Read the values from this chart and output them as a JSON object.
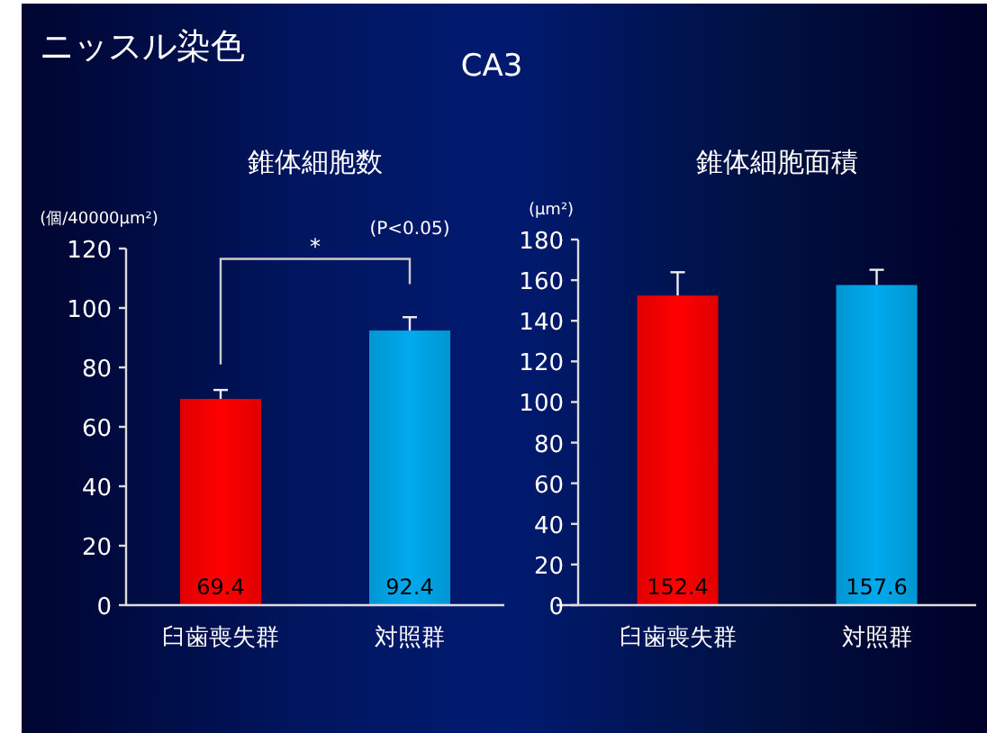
{
  "chart_data": [
    {
      "type": "bar",
      "title": "錐体細胞数",
      "ylabel": "(個/40000μm²)",
      "categories": [
        "臼歯喪失群",
        "対照群"
      ],
      "values": [
        69.4,
        92.4
      ],
      "colors": [
        "#ff0000",
        "#00aaee"
      ],
      "errors": [
        3,
        4.5
      ],
      "data_labels": true,
      "ylim": [
        0,
        120
      ],
      "yticks": [
        0,
        20,
        40,
        60,
        80,
        100,
        120
      ],
      "annotations": [
        "ニッスル染色",
        "CA3",
        "*",
        "(P<0.05)"
      ]
    },
    {
      "type": "bar",
      "title": "錐体細胞面積",
      "ylabel": "(μm²)",
      "categories": [
        "臼歯喪失群",
        "対照群"
      ],
      "values": [
        152.4,
        157.6
      ],
      "colors": [
        "#ff0000",
        "#00aaee"
      ],
      "errors": [
        11.5,
        7.5
      ],
      "data_labels": true,
      "ylim": [
        0,
        180
      ],
      "yticks": [
        0,
        20,
        40,
        60,
        80,
        100,
        120,
        140,
        160,
        180
      ]
    }
  ]
}
